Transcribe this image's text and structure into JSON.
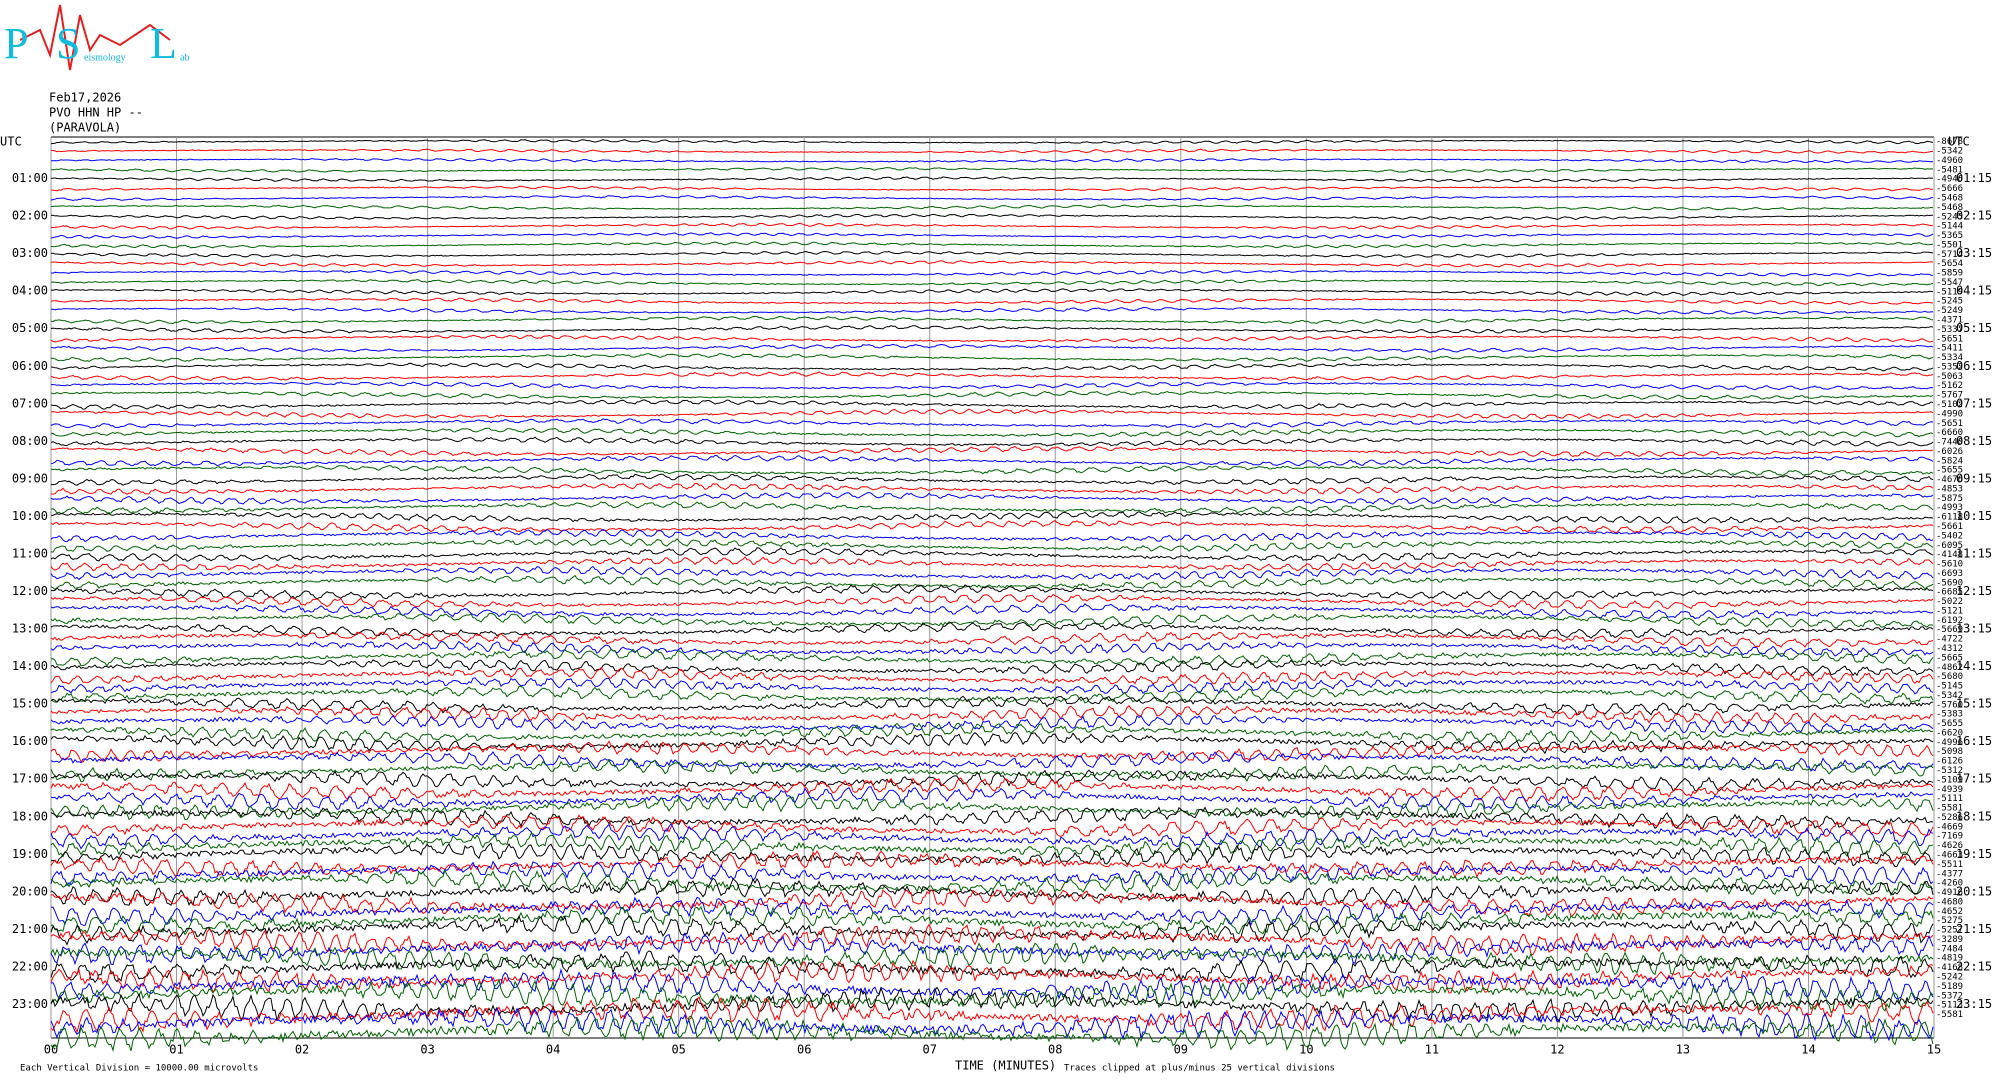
{
  "logo": {
    "letters": [
      "P",
      "S",
      "L"
    ],
    "words": [
      "eismology",
      "ab"
    ]
  },
  "header": {
    "date": "Feb17,2026",
    "station": "PVO HHN HP --",
    "site": "(PARAVOLA)"
  },
  "left_axis": {
    "title": "UTC",
    "labels": [
      "01:00",
      "02:00",
      "03:00",
      "04:00",
      "05:00",
      "06:00",
      "07:00",
      "08:00",
      "09:00",
      "10:00",
      "11:00",
      "12:00",
      "13:00",
      "14:00",
      "15:00",
      "16:00",
      "17:00",
      "18:00",
      "19:00",
      "20:00",
      "21:00",
      "22:00",
      "23:00"
    ]
  },
  "right_axis": {
    "title": "UTC",
    "labels": [
      "01:15",
      "02:15",
      "03:15",
      "04:15",
      "05:15",
      "06:15",
      "07:15",
      "08:15",
      "09:15",
      "10:15",
      "11:15",
      "12:15",
      "13:15",
      "14:15",
      "15:15",
      "16:15",
      "17:15",
      "18:15",
      "19:15",
      "20:15",
      "21:15",
      "22:15",
      "23:15"
    ]
  },
  "trace_offsets": [
    -8678,
    -5342,
    -4960,
    -5481,
    -4946,
    -5666,
    -5468,
    -5468,
    -5245,
    -5144,
    -5365,
    -5501,
    -5714,
    -5654,
    -5859,
    -5547,
    -5119,
    -5245,
    -5249,
    -4371,
    -5337,
    -5651,
    -5411,
    -5334,
    -5352,
    -5063,
    -5162,
    -5767,
    -5102,
    -4990,
    -5651,
    -6660,
    -7440,
    -6026,
    -5824,
    -5655,
    -4676,
    -4853,
    -5875,
    -4993,
    -6118,
    -5661,
    -5402,
    -6095,
    -4148,
    -5610,
    -6693,
    -5690,
    -6685,
    -5022,
    -5121,
    -6192,
    -5669,
    -4722,
    -4312,
    -5665,
    -4862,
    -5680,
    -5145,
    -5342,
    -5760,
    -5383,
    -5655,
    -6620,
    -4996,
    -5098,
    -6126,
    -5312,
    -5109,
    -4939,
    -5111,
    -5581,
    -5286,
    -4669,
    -7169,
    -4626,
    -4663,
    -5511,
    -4377,
    -4260,
    -4916,
    -4680,
    -4652,
    -5275,
    -5257,
    -3289,
    -7484,
    -4819,
    -4168,
    -5242,
    -5189,
    -5372,
    -5113,
    -5581
  ],
  "trace_colors": [
    "#000000",
    "#ff0000",
    "#0000ff",
    "#006400"
  ],
  "x_axis": {
    "labels": [
      "00",
      "01",
      "02",
      "03",
      "04",
      "05",
      "06",
      "07",
      "08",
      "09",
      "10",
      "11",
      "12",
      "13",
      "14",
      "15"
    ],
    "title": "TIME (MINUTES)"
  },
  "footer": {
    "scale": "Each Vertical Division = 10000.00 microvolts",
    "clip": "Traces clipped at plus/minus 25 vertical divisions"
  }
}
